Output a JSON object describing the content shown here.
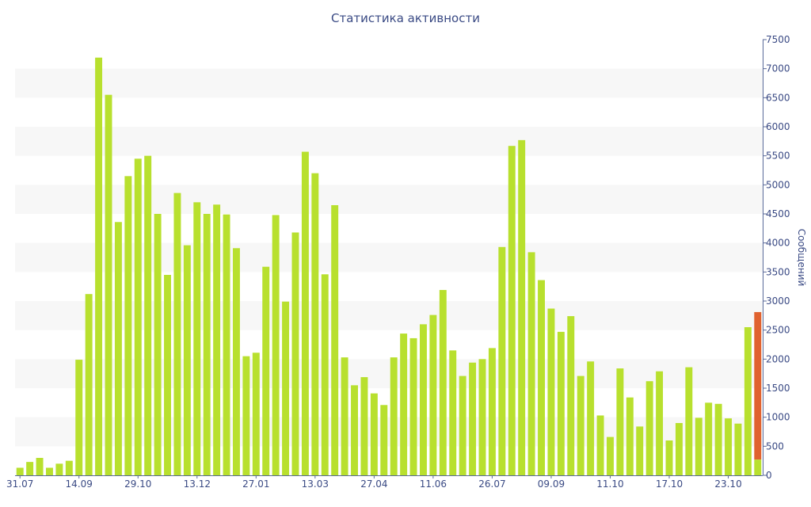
{
  "chart_data": {
    "type": "bar",
    "title": "Статистика активности",
    "ylabel": "Сообщений",
    "ylim": [
      0,
      7500
    ],
    "yticks": [
      0,
      500,
      1000,
      1500,
      2000,
      2500,
      3000,
      3500,
      4000,
      4500,
      5000,
      5500,
      6000,
      6500,
      7000,
      7500
    ],
    "y_axis_side": "right",
    "x_tick_labels": [
      {
        "index": 0,
        "label": "31.07"
      },
      {
        "index": 6,
        "label": "14.09"
      },
      {
        "index": 12,
        "label": "29.10"
      },
      {
        "index": 18,
        "label": "13.12"
      },
      {
        "index": 24,
        "label": "27.01"
      },
      {
        "index": 30,
        "label": "13.03"
      },
      {
        "index": 36,
        "label": "27.04"
      },
      {
        "index": 42,
        "label": "11.06"
      },
      {
        "index": 48,
        "label": "26.07"
      },
      {
        "index": 54,
        "label": "09.09"
      },
      {
        "index": 60,
        "label": "11.10"
      },
      {
        "index": 66,
        "label": "17.10"
      },
      {
        "index": 72,
        "label": "23.10"
      }
    ],
    "values": [
      130,
      230,
      300,
      130,
      200,
      250,
      1990,
      3120,
      7190,
      6550,
      4360,
      5150,
      5450,
      5500,
      4500,
      3450,
      4860,
      3960,
      4700,
      4500,
      4660,
      4490,
      3910,
      2050,
      2110,
      3590,
      4480,
      2990,
      4180,
      5570,
      5200,
      3460,
      4650,
      2030,
      1550,
      1690,
      1410,
      1210,
      2030,
      2440,
      2360,
      2600,
      2760,
      3190,
      2150,
      1710,
      1940,
      2000,
      2190,
      3930,
      5670,
      5770,
      3840,
      3360,
      2870,
      2470,
      2740,
      1710,
      1960,
      1030,
      660,
      1840,
      1340,
      840,
      1620,
      1790,
      600,
      900,
      1860,
      990,
      1250,
      1230,
      980,
      890,
      2550,
      2810
    ],
    "highlight": {
      "index": 75,
      "base_value": 270,
      "base_color": "#b8e02e",
      "color": "#e0622f"
    },
    "bar_color": "#b8e02e",
    "grid_band_color": "#f7f7f7",
    "text_color": "#3a4a84"
  }
}
